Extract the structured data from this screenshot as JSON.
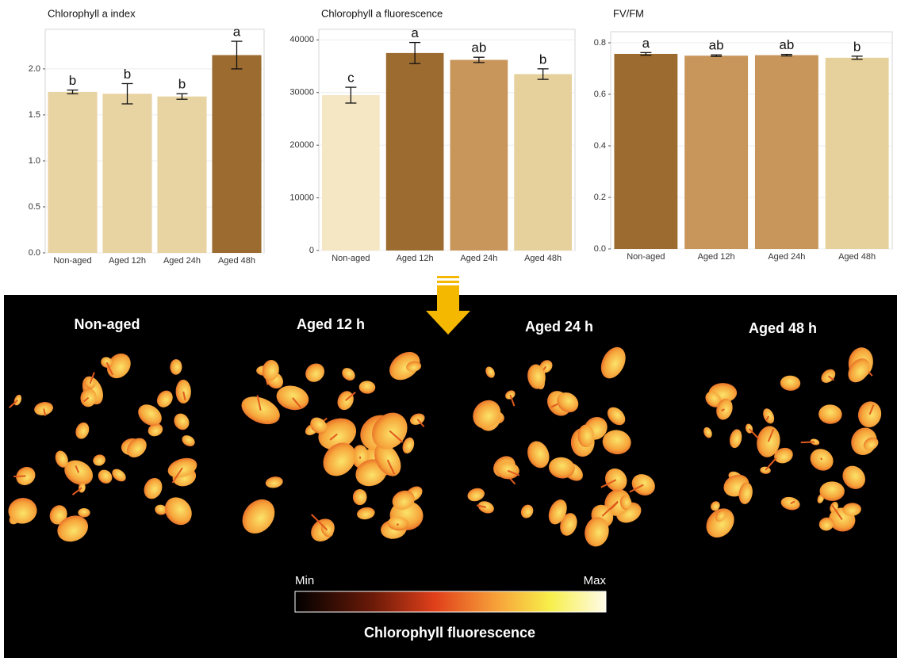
{
  "chart_data": [
    {
      "type": "bar",
      "title": "Chlorophyll a index",
      "categories": [
        "Non-aged",
        "Aged 12h",
        "Aged 24h",
        "Aged 48h"
      ],
      "values": [
        1.75,
        1.73,
        1.7,
        2.15
      ],
      "errors": [
        0.02,
        0.11,
        0.03,
        0.15
      ],
      "annotations": [
        "b",
        "b",
        "b",
        "a"
      ],
      "colors": [
        "#e8d3a2",
        "#e8d3a2",
        "#e8d3a2",
        "#9c6b30"
      ],
      "ylim": [
        0,
        2.43
      ],
      "yticks": [
        {
          "value": 0,
          "label": "0.0"
        },
        {
          "value": 0.5,
          "label": "0.5"
        },
        {
          "value": 1,
          "label": "1.0"
        },
        {
          "value": 1.5,
          "label": "1.5"
        },
        {
          "value": 2,
          "label": "2.0"
        }
      ],
      "grid": true
    },
    {
      "type": "bar",
      "title": "Chlorophyll a fluorescence",
      "categories": [
        "Non-aged",
        "Aged 12h",
        "Aged 24h",
        "Aged 48h"
      ],
      "values": [
        29500,
        37500,
        36200,
        33500
      ],
      "errors": [
        1500,
        2000,
        500,
        1000
      ],
      "annotations": [
        "c",
        "a",
        "ab",
        "b"
      ],
      "colors": [
        "#f5e6c4",
        "#9c6b30",
        "#c8955a",
        "#e6d09c"
      ],
      "ylim": [
        0,
        42000
      ],
      "yticks": [
        0,
        10000,
        20000,
        30000,
        40000
      ],
      "grid": true
    },
    {
      "type": "bar",
      "title": "FV/FM",
      "categories": [
        "Non-aged",
        "Aged 12h",
        "Aged 24h",
        "Aged 48h"
      ],
      "values": [
        0.757,
        0.75,
        0.752,
        0.742
      ],
      "errors": [
        0.005,
        0.003,
        0.003,
        0.006
      ],
      "annotations": [
        "a",
        "ab",
        "ab",
        "b"
      ],
      "colors": [
        "#9c6b30",
        "#c8955a",
        "#c8955a",
        "#e6d09c"
      ],
      "ylim": [
        0,
        0.843
      ],
      "yticks": [
        {
          "value": 0,
          "label": "0.0"
        },
        {
          "value": 0.2,
          "label": "0.2"
        },
        {
          "value": 0.4,
          "label": "0.4"
        },
        {
          "value": 0.6,
          "label": "0.6"
        },
        {
          "value": 0.8,
          "label": "0.8"
        }
      ],
      "grid": true
    }
  ],
  "image_panel": {
    "labels": [
      "Non-aged",
      "Aged 12 h",
      "Aged 24 h",
      "Aged 48 h"
    ],
    "colorbar": {
      "min": "Min",
      "max": "Max",
      "title": "Chlorophyll fluorescence"
    }
  }
}
